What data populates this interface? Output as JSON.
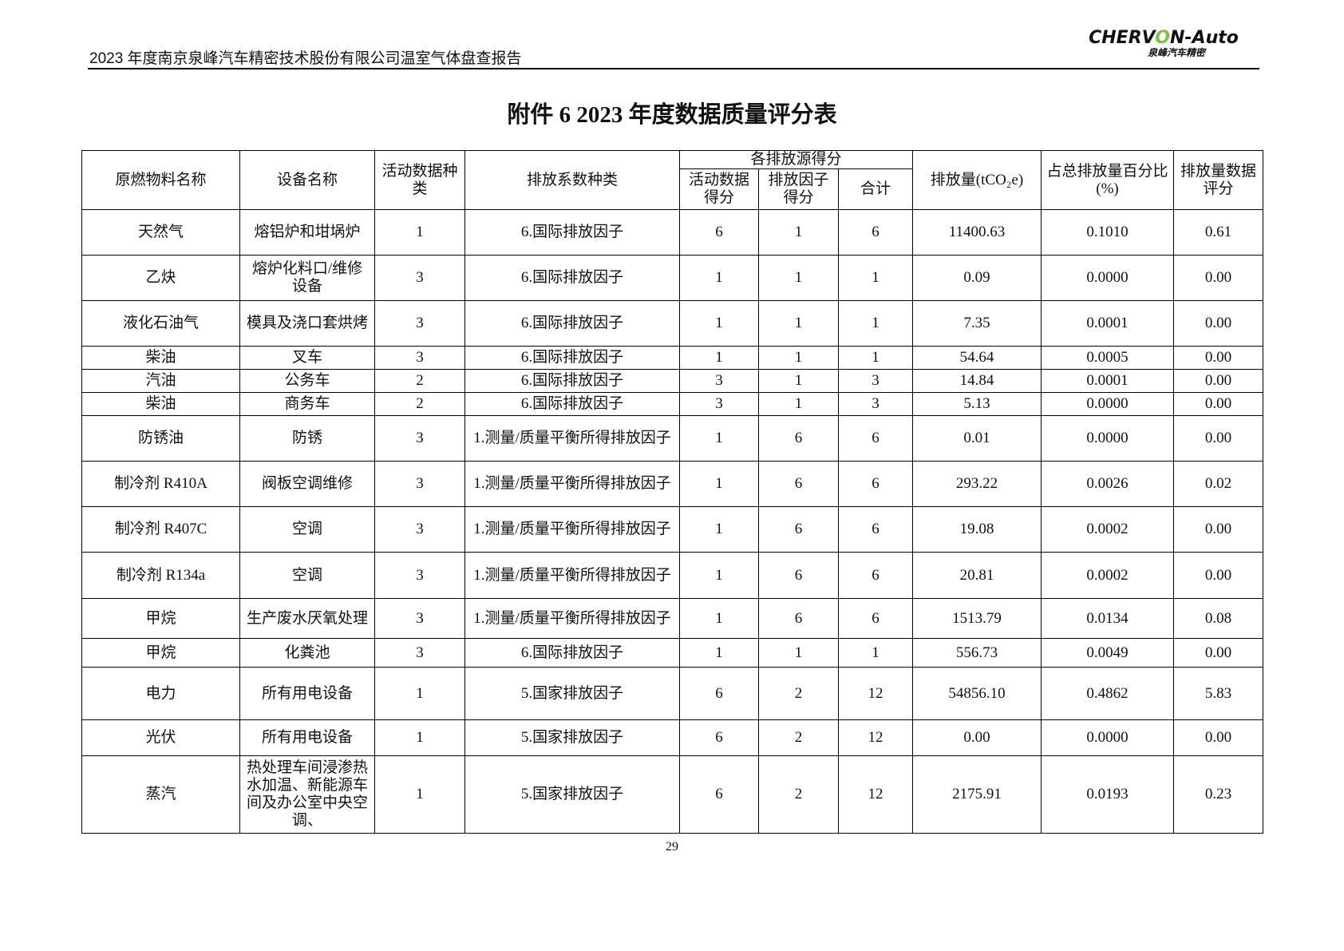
{
  "header": {
    "report_title": "2023 年度南京泉峰汽车精密技术股份有限公司温室气体盘查报告",
    "logo_text": "CHERVON-Auto",
    "logo_subtext": "泉峰汽车精密"
  },
  "title": "附件 6  2023 年度数据质量评分表",
  "table": {
    "headers": {
      "material": "原燃物料名称",
      "equipment": "设备名称",
      "activity_type": "活动数据种类",
      "factor_type": "排放系数种类",
      "score_group": "各排放源得分",
      "activity_score": "活动数据得分",
      "factor_score": "排放因子得分",
      "total": "合计",
      "emission": "排放量(tCO₂e)",
      "percent": "占总排放量百分比(%)",
      "quality_score": "排放量数据评分"
    },
    "rows": [
      [
        "天然气",
        "熔铝炉和坩埚炉",
        "1",
        "6.国际排放因子",
        "6",
        "1",
        "6",
        "11400.63",
        "0.1010",
        "0.61"
      ],
      [
        "乙炔",
        "熔炉化料口/维修设备",
        "3",
        "6.国际排放因子",
        "1",
        "1",
        "1",
        "0.09",
        "0.0000",
        "0.00"
      ],
      [
        "液化石油气",
        "模具及浇口套烘烤",
        "3",
        "6.国际排放因子",
        "1",
        "1",
        "1",
        "7.35",
        "0.0001",
        "0.00"
      ],
      [
        "柴油",
        "叉车",
        "3",
        "6.国际排放因子",
        "1",
        "1",
        "1",
        "54.64",
        "0.0005",
        "0.00"
      ],
      [
        "汽油",
        "公务车",
        "2",
        "6.国际排放因子",
        "3",
        "1",
        "3",
        "14.84",
        "0.0001",
        "0.00"
      ],
      [
        "柴油",
        "商务车",
        "2",
        "6.国际排放因子",
        "3",
        "1",
        "3",
        "5.13",
        "0.0000",
        "0.00"
      ],
      [
        "防锈油",
        "防锈",
        "3",
        "1.测量/质量平衡所得排放因子",
        "1",
        "6",
        "6",
        "0.01",
        "0.0000",
        "0.00"
      ],
      [
        "制冷剂 R410A",
        "阀板空调维修",
        "3",
        "1.测量/质量平衡所得排放因子",
        "1",
        "6",
        "6",
        "293.22",
        "0.0026",
        "0.02"
      ],
      [
        "制冷剂 R407C",
        "空调",
        "3",
        "1.测量/质量平衡所得排放因子",
        "1",
        "6",
        "6",
        "19.08",
        "0.0002",
        "0.00"
      ],
      [
        "制冷剂 R134a",
        "空调",
        "3",
        "1.测量/质量平衡所得排放因子",
        "1",
        "6",
        "6",
        "20.81",
        "0.0002",
        "0.00"
      ],
      [
        "甲烷",
        "生产废水厌氧处理",
        "3",
        "1.测量/质量平衡所得排放因子",
        "1",
        "6",
        "6",
        "1513.79",
        "0.0134",
        "0.08"
      ],
      [
        "甲烷",
        "化粪池",
        "3",
        "6.国际排放因子",
        "1",
        "1",
        "1",
        "556.73",
        "0.0049",
        "0.00"
      ],
      [
        "电力",
        "所有用电设备",
        "1",
        "5.国家排放因子",
        "6",
        "2",
        "12",
        "54856.10",
        "0.4862",
        "5.83"
      ],
      [
        "光伏",
        "所有用电设备",
        "1",
        "5.国家排放因子",
        "6",
        "2",
        "12",
        "0.00",
        "0.0000",
        "0.00"
      ],
      [
        "蒸汽",
        "热处理车间浸渗热水加温、新能源车间及办公室中央空调、",
        "1",
        "5.国家排放因子",
        "6",
        "2",
        "12",
        "2175.91",
        "0.0193",
        "0.23"
      ]
    ]
  },
  "page_number": "29"
}
